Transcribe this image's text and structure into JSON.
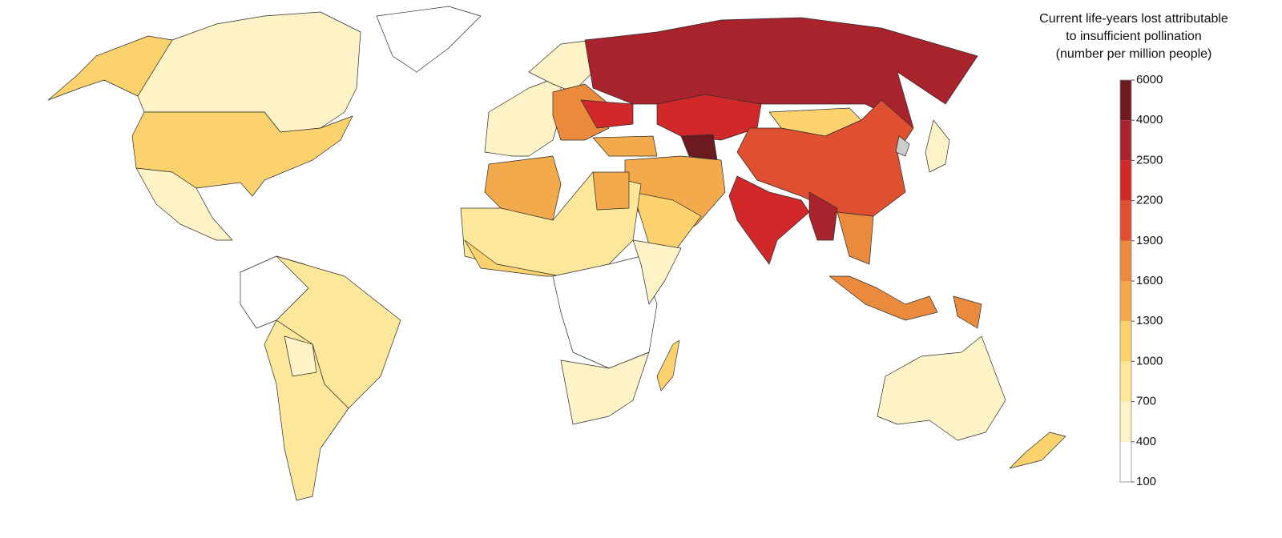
{
  "legend": {
    "title_lines": [
      "Current life-years lost attributable",
      "to insufficient pollination",
      "(number per million people)"
    ],
    "ticks": [
      100,
      400,
      700,
      1000,
      1300,
      1600,
      1900,
      2200,
      2500,
      4000,
      6000
    ],
    "colors": [
      "#ffffff",
      "#fdf3c6",
      "#fde79a",
      "#fbd26e",
      "#f2aa4c",
      "#ea8a3d",
      "#df5030",
      "#d1282a",
      "#a8232c",
      "#6c1a1f"
    ]
  }
}
